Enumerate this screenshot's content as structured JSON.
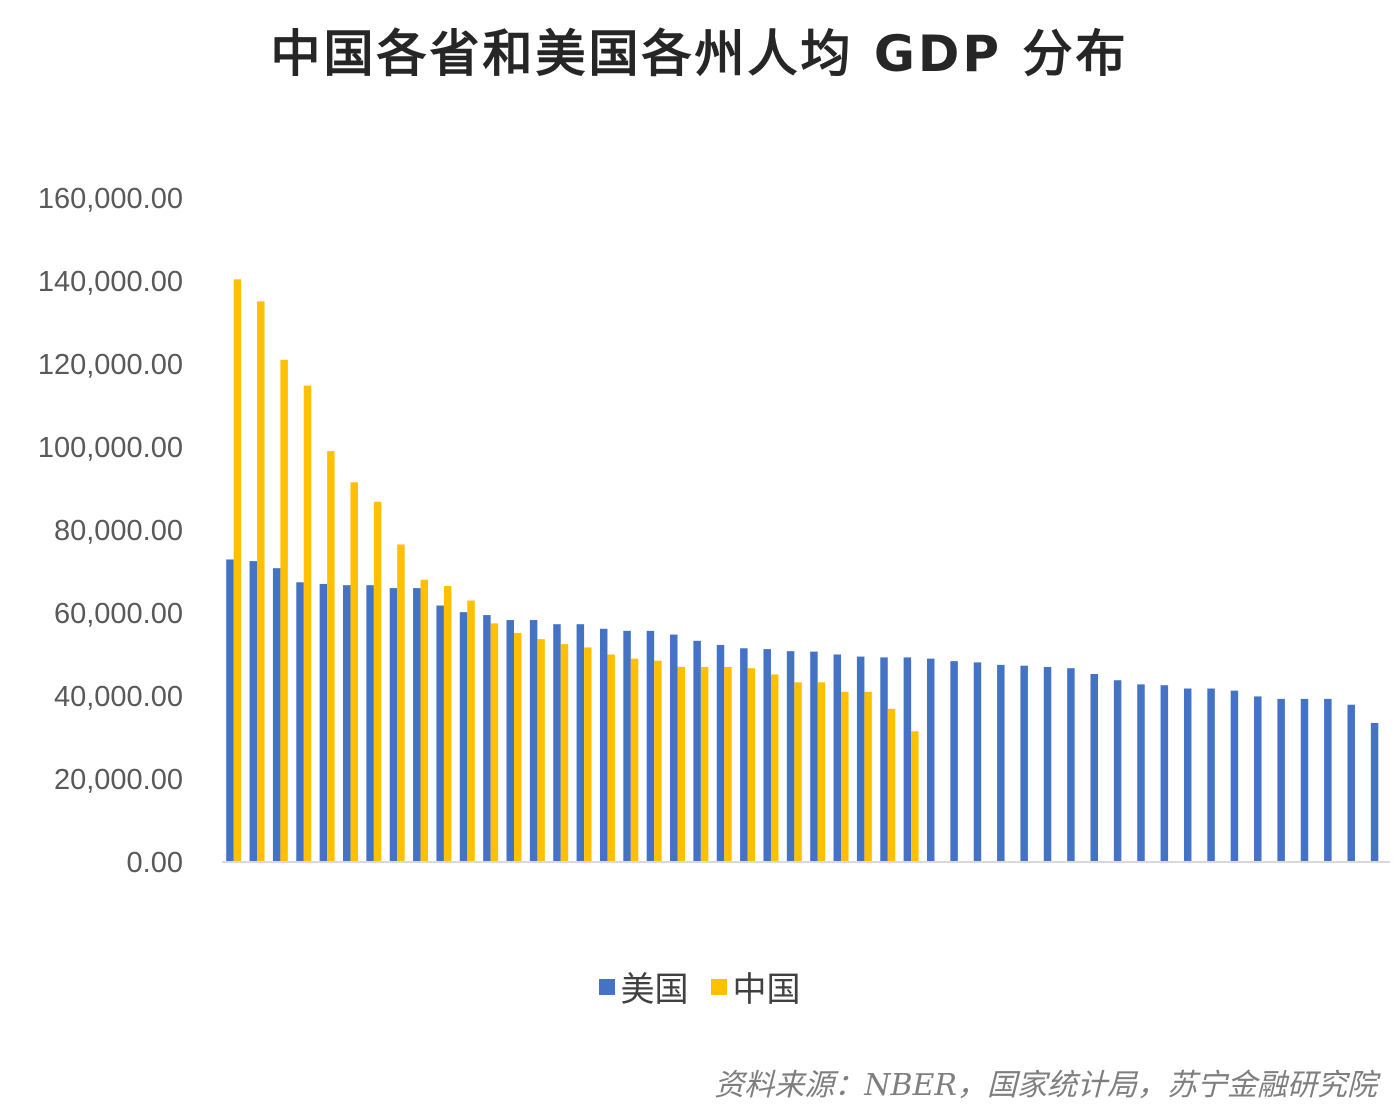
{
  "chart_data": {
    "type": "bar",
    "title": "中国各省和美国各州人均 GDP 分布",
    "ylim": [
      0,
      160000
    ],
    "yticks": [
      "0.00",
      "20,000.00",
      "40,000.00",
      "60,000.00",
      "80,000.00",
      "100,000.00",
      "120,000.00",
      "140,000.00",
      "160,000.00"
    ],
    "grid": false,
    "legend_position": "bottom",
    "series": [
      {
        "name": "美国",
        "color": "#4472C4",
        "values": [
          72900,
          72500,
          70800,
          67400,
          67000,
          66700,
          66700,
          66000,
          66000,
          61800,
          60200,
          59500,
          58300,
          58300,
          57300,
          57300,
          56200,
          55700,
          55700,
          54800,
          53300,
          52300,
          51500,
          51300,
          50800,
          50700,
          50000,
          49500,
          49300,
          49300,
          49000,
          48400,
          48100,
          47500,
          47300,
          47000,
          46700,
          45300,
          43800,
          42800,
          42600,
          41800,
          41800,
          41300,
          39900,
          39300,
          39300,
          39300,
          37900,
          33500
        ]
      },
      {
        "name": "中国",
        "color": "#FFC000",
        "values": [
          140400,
          135100,
          121000,
          114800,
          99000,
          91500,
          86800,
          76500,
          68000,
          66500,
          63000,
          57500,
          55200,
          53700,
          52500,
          51700,
          50000,
          49000,
          48500,
          47000,
          47000,
          47000,
          46700,
          45200,
          43300,
          43300,
          41000,
          41000,
          36900,
          31500
        ]
      }
    ]
  },
  "legend": [
    {
      "label": "美国",
      "color": "#4472C4"
    },
    {
      "label": "中国",
      "color": "#FFC000"
    }
  ],
  "source": "资料来源：NBER，国家统计局，苏宁金融研究院"
}
